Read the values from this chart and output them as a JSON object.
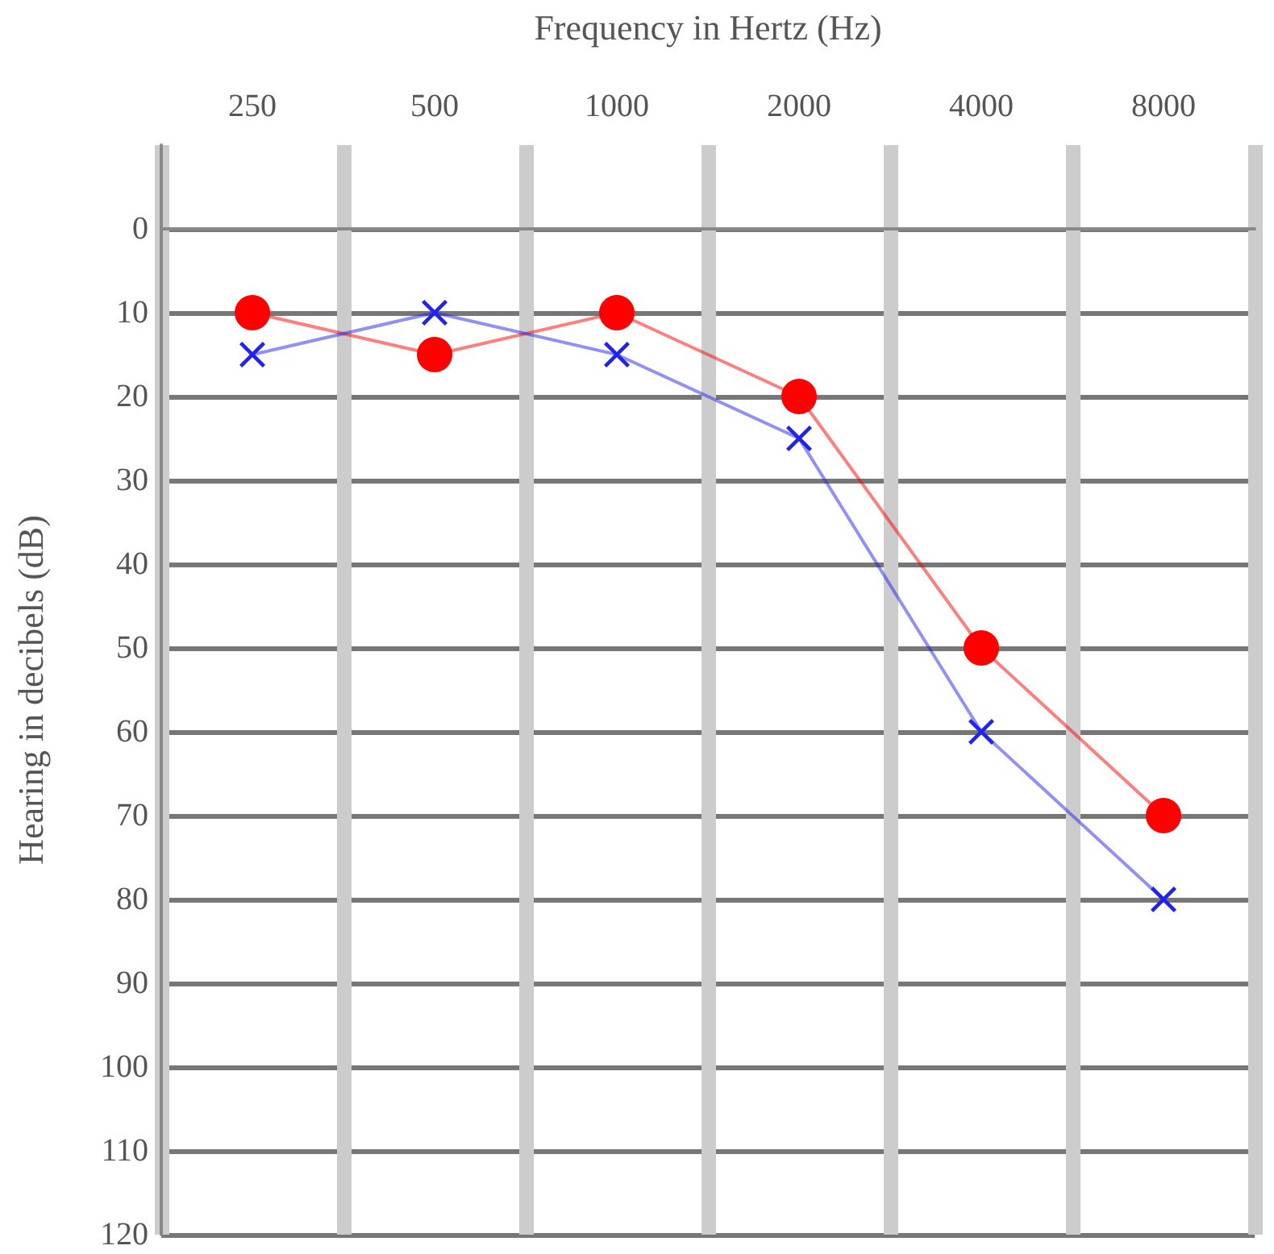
{
  "chart_data": {
    "type": "line",
    "xlabel": "Frequency in Hertz (Hz)",
    "ylabel": "Hearing in decibels (dB)",
    "categories": [
      "250",
      "500",
      "1000",
      "2000",
      "4000",
      "8000"
    ],
    "series": [
      {
        "color": "#ff0000",
        "marker": "circle",
        "values": [
          10,
          15,
          10,
          20,
          50,
          70
        ]
      },
      {
        "color": "#2222ee",
        "marker": "cross",
        "values": [
          15,
          10,
          15,
          25,
          60,
          80
        ]
      }
    ],
    "ylim": [
      120,
      -10
    ],
    "yticks": [
      0,
      10,
      20,
      30,
      40,
      50,
      60,
      70,
      80,
      90,
      100,
      110,
      120
    ],
    "grid": true,
    "line_style": "solid"
  }
}
